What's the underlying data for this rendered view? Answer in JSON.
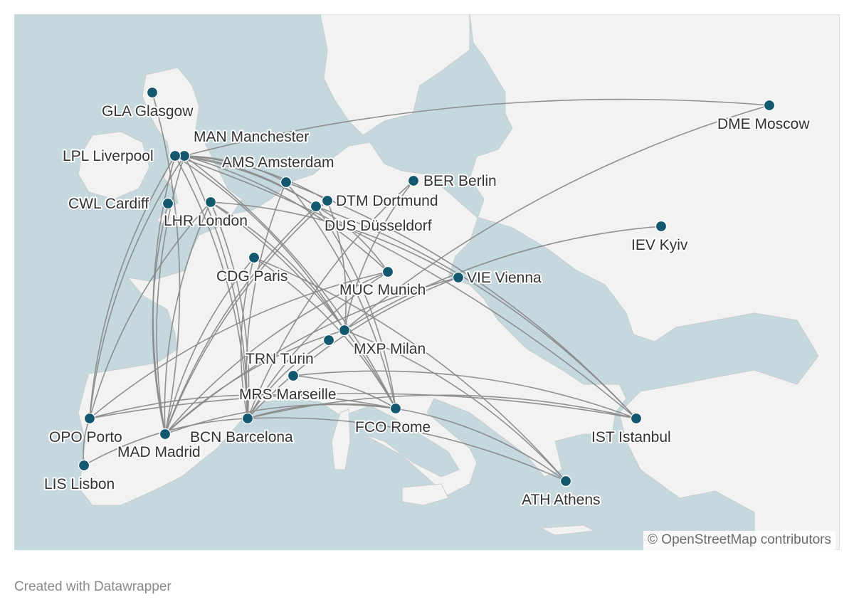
{
  "map": {
    "colors": {
      "water": "#c5d8dd",
      "land": "#f2f2f1",
      "route": "#8a8a8a",
      "airport": "#14586f"
    },
    "airports": [
      {
        "code": "GLA",
        "label": "GLA Glasgow"
      },
      {
        "code": "MAN",
        "label": "MAN Manchester"
      },
      {
        "code": "LPL",
        "label": "LPL Liverpool"
      },
      {
        "code": "AMS",
        "label": "AMS Amsterdam"
      },
      {
        "code": "BER",
        "label": "BER Berlin"
      },
      {
        "code": "DTM",
        "label": "DTM Dortmund"
      },
      {
        "code": "CWL",
        "label": "CWL Cardiff"
      },
      {
        "code": "LHR",
        "label": "LHR London"
      },
      {
        "code": "DUS",
        "label": "DUS Düsseldorf"
      },
      {
        "code": "DME",
        "label": "DME Moscow"
      },
      {
        "code": "IEV",
        "label": "IEV Kyiv"
      },
      {
        "code": "CDG",
        "label": "CDG Paris"
      },
      {
        "code": "VIE",
        "label": "VIE Vienna"
      },
      {
        "code": "MUC",
        "label": "MUC Munich"
      },
      {
        "code": "MXP",
        "label": "MXP Milan"
      },
      {
        "code": "TRN",
        "label": "TRN Turin"
      },
      {
        "code": "MRS",
        "label": "MRS Marseille"
      },
      {
        "code": "OPO",
        "label": "OPO Porto"
      },
      {
        "code": "BCN",
        "label": "BCN Barcelona"
      },
      {
        "code": "FCO",
        "label": "FCO Rome"
      },
      {
        "code": "IST",
        "label": "IST Istanbul"
      },
      {
        "code": "MAD",
        "label": "MAD Madrid"
      },
      {
        "code": "LIS",
        "label": "LIS Lisbon"
      },
      {
        "code": "ATH",
        "label": "ATH Athens"
      }
    ],
    "routes": [
      [
        "MAN",
        "DME"
      ],
      [
        "GLA",
        "MAD"
      ],
      [
        "LPL",
        "MAD"
      ],
      [
        "LPL",
        "OPO"
      ],
      [
        "LPL",
        "BCN"
      ],
      [
        "LPL",
        "MXP"
      ],
      [
        "LPL",
        "DUS"
      ],
      [
        "LPL",
        "IST"
      ],
      [
        "MAN",
        "MAD"
      ],
      [
        "MAN",
        "OPO"
      ],
      [
        "MAN",
        "BCN"
      ],
      [
        "MAN",
        "FCO"
      ],
      [
        "MAN",
        "DUS"
      ],
      [
        "MAN",
        "DTM"
      ],
      [
        "MAN",
        "MUC"
      ],
      [
        "MAN",
        "AMS"
      ],
      [
        "CWL",
        "MAD"
      ],
      [
        "LHR",
        "MAD"
      ],
      [
        "LHR",
        "OPO"
      ],
      [
        "LHR",
        "BCN"
      ],
      [
        "LHR",
        "FCO"
      ],
      [
        "LHR",
        "VIE"
      ],
      [
        "LHR",
        "MXP"
      ],
      [
        "AMS",
        "BCN"
      ],
      [
        "AMS",
        "FCO"
      ],
      [
        "AMS",
        "IST"
      ],
      [
        "DUS",
        "MAD"
      ],
      [
        "DUS",
        "FCO"
      ],
      [
        "DUS",
        "IST"
      ],
      [
        "DUS",
        "MUC"
      ],
      [
        "DTM",
        "MAD"
      ],
      [
        "DTM",
        "MXP"
      ],
      [
        "BER",
        "BCN"
      ],
      [
        "BER",
        "MXP"
      ],
      [
        "CDG",
        "BCN"
      ],
      [
        "CDG",
        "MAD"
      ],
      [
        "CDG",
        "FCO"
      ],
      [
        "CDG",
        "ATH"
      ],
      [
        "MUC",
        "MAD"
      ],
      [
        "MUC",
        "OPO"
      ],
      [
        "MUC",
        "BCN"
      ],
      [
        "VIE",
        "BCN"
      ],
      [
        "VIE",
        "MAD"
      ],
      [
        "MXP",
        "MAD"
      ],
      [
        "MXP",
        "IEV"
      ],
      [
        "MXP",
        "DME"
      ],
      [
        "MXP",
        "ATH"
      ],
      [
        "TRN",
        "BCN"
      ],
      [
        "MRS",
        "FCO"
      ],
      [
        "MRS",
        "IST"
      ],
      [
        "OPO",
        "LIS"
      ],
      [
        "OPO",
        "FCO"
      ],
      [
        "OPO",
        "IST"
      ],
      [
        "LIS",
        "BCN"
      ],
      [
        "BCN",
        "FCO"
      ],
      [
        "BCN",
        "IST"
      ],
      [
        "BCN",
        "ATH"
      ],
      [
        "MAD",
        "FCO"
      ],
      [
        "FCO",
        "ATH"
      ]
    ]
  },
  "attribution": "© OpenStreetMap contributors",
  "footer": {
    "credit": "Created with Datawrapper"
  }
}
